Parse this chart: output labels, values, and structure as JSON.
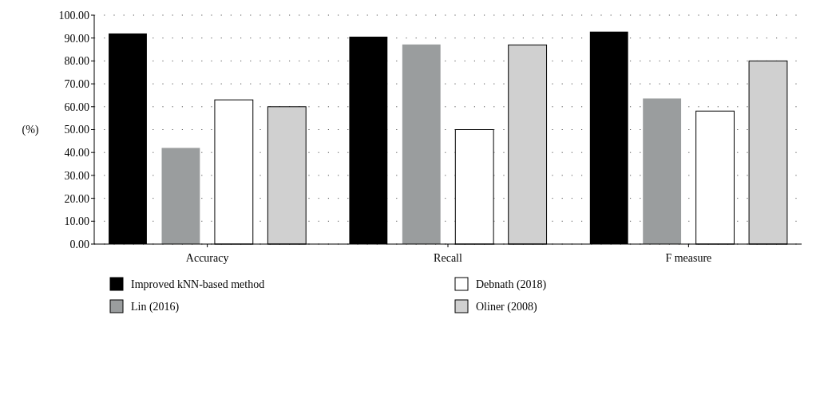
{
  "chart_data": {
    "type": "bar",
    "ylabel": "(%)",
    "categories": [
      "Accuracy",
      "Recall",
      "F measure"
    ],
    "series": [
      {
        "name": "Improved kNN-based method",
        "color": "#000000",
        "values": [
          92,
          90.6,
          92.8
        ]
      },
      {
        "name": "Lin (2016)",
        "color": "#9a9d9e",
        "values": [
          42,
          87.2,
          63.6
        ]
      },
      {
        "name": "Debnath (2018)",
        "color": "#ffffff",
        "values": [
          63,
          50,
          58.1
        ]
      },
      {
        "name": "Oliner (2008)",
        "color": "#d0d0d0",
        "values": [
          60,
          87,
          80
        ]
      }
    ],
    "ylim": [
      0,
      100
    ],
    "yticks": [
      {
        "value": 0,
        "label": "0.00"
      },
      {
        "value": 10,
        "label": "10.00"
      },
      {
        "value": 20,
        "label": "20.00"
      },
      {
        "value": 30,
        "label": "30.00"
      },
      {
        "value": 40,
        "label": "40.00"
      },
      {
        "value": 50,
        "label": "50.00"
      },
      {
        "value": 60,
        "label": "60.00"
      },
      {
        "value": 70,
        "label": "70.00"
      },
      {
        "value": 80,
        "label": "80.00"
      },
      {
        "value": 90,
        "label": "90.00"
      },
      {
        "value": 100,
        "label": "100.00"
      }
    ],
    "grid": "y",
    "legend": "bottom"
  }
}
